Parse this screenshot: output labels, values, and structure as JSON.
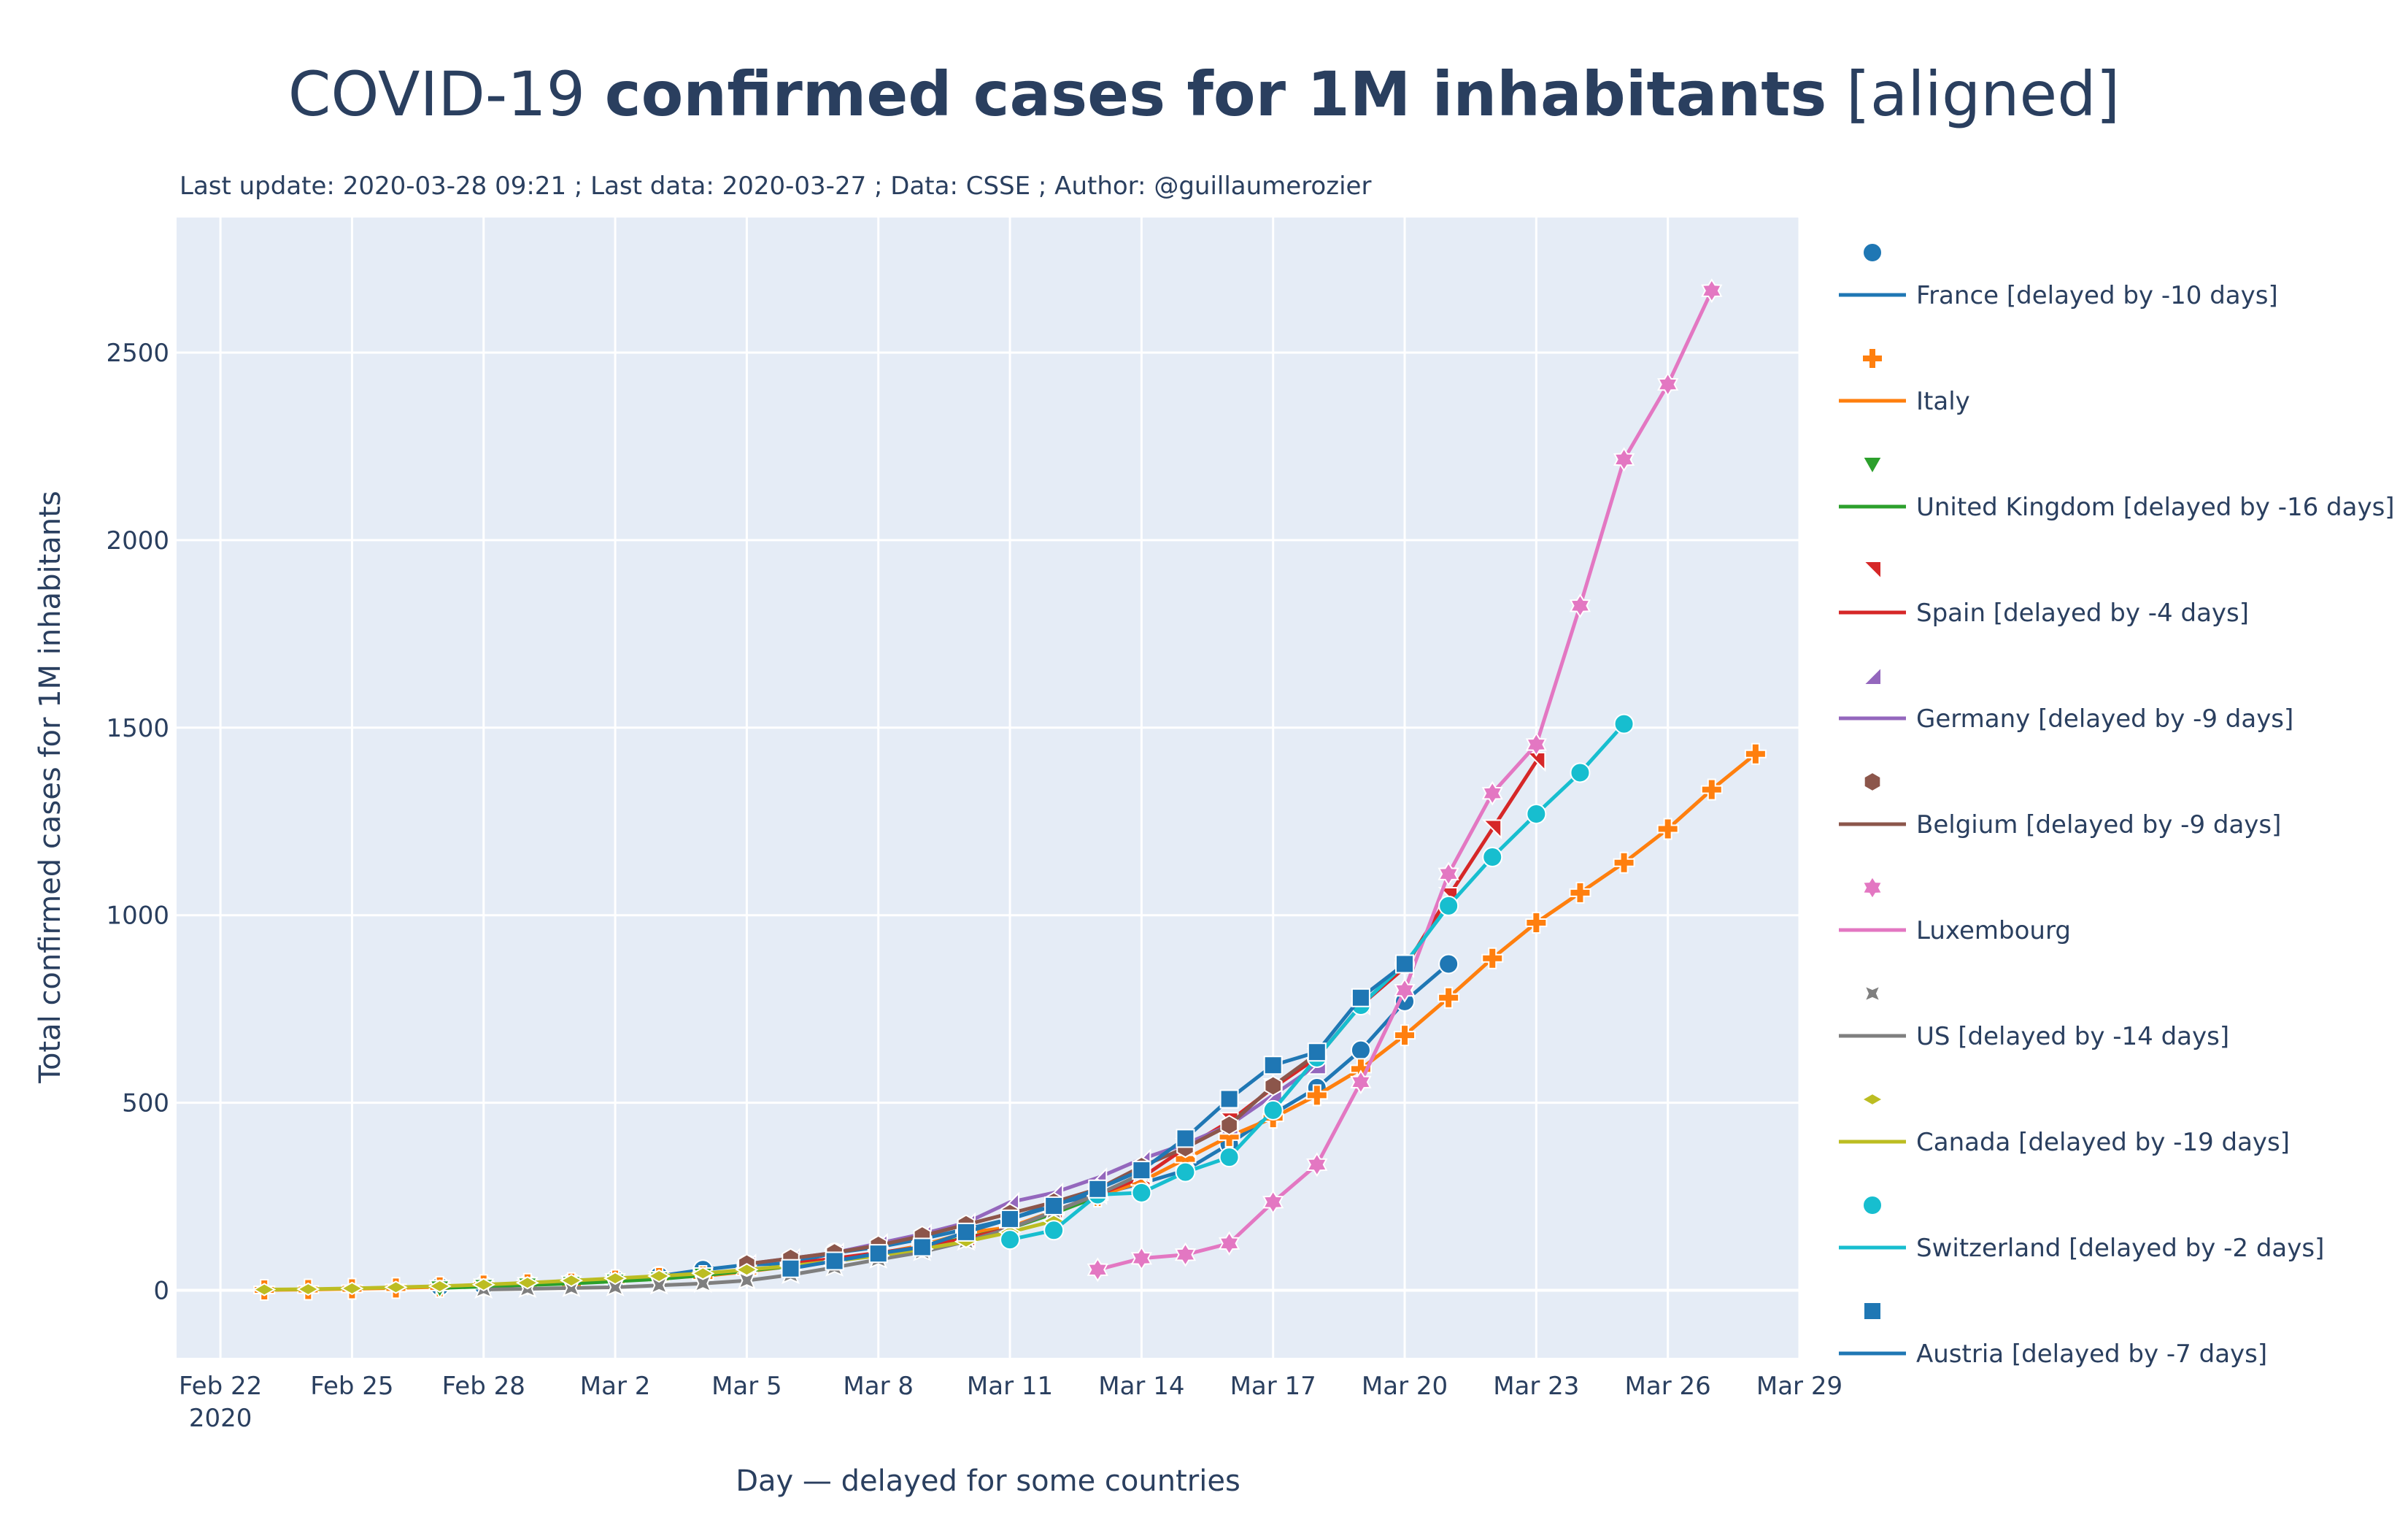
{
  "chart_data": {
    "type": "line",
    "title_prefix": "COVID-19 ",
    "title_bold": "confirmed cases for 1M inhabitants",
    "title_suffix": " [aligned]",
    "subtitle": "Last update: 2020-03-28 09:21 ; Last data: 2020-03-27 ; Data: CSSE ; Author: @guillaumerozier",
    "xlabel": "Day — delayed for some countries",
    "ylabel": "Total confirmed cases  for 1M inhabitants",
    "x_ticks": [
      {
        "date": "2020-02-22",
        "label": "Feb 22",
        "label2": "2020"
      },
      {
        "date": "2020-02-25",
        "label": "Feb 25"
      },
      {
        "date": "2020-02-28",
        "label": "Feb 28"
      },
      {
        "date": "2020-03-02",
        "label": "Mar 2"
      },
      {
        "date": "2020-03-05",
        "label": "Mar 5"
      },
      {
        "date": "2020-03-08",
        "label": "Mar 8"
      },
      {
        "date": "2020-03-11",
        "label": "Mar 11"
      },
      {
        "date": "2020-03-14",
        "label": "Mar 14"
      },
      {
        "date": "2020-03-17",
        "label": "Mar 17"
      },
      {
        "date": "2020-03-20",
        "label": "Mar 20"
      },
      {
        "date": "2020-03-23",
        "label": "Mar 23"
      },
      {
        "date": "2020-03-26",
        "label": "Mar 26"
      },
      {
        "date": "2020-03-29",
        "label": "Mar 29"
      }
    ],
    "xlim": [
      "2020-02-21",
      "2020-03-29"
    ],
    "y_ticks": [
      0,
      500,
      1000,
      1500,
      2000,
      2500
    ],
    "ylim": [
      -180,
      2860
    ],
    "grid": true,
    "legend_placement": "right",
    "series": [
      {
        "name": "France [delayed by -10 days]",
        "color": "#1f77b4",
        "marker": "circle",
        "start": "2020-02-27",
        "values": [
          10,
          12,
          15,
          20,
          28,
          38,
          55,
          68,
          72,
          100,
          115,
          137,
          163,
          190,
          230,
          255,
          285,
          320,
          390,
          470,
          540,
          640,
          770,
          870
        ]
      },
      {
        "name": "Italy",
        "color": "#ff7f0e",
        "marker": "cross",
        "start": "2020-02-23",
        "values": [
          1,
          2,
          4,
          6,
          9,
          14,
          17,
          19,
          27,
          34,
          38,
          50,
          64,
          76,
          98,
          120,
          153,
          168,
          211,
          250,
          290,
          350,
          410,
          460,
          520,
          590,
          680,
          780,
          885,
          980,
          1060,
          1140,
          1230,
          1335,
          1430
        ]
      },
      {
        "name": "United Kingdom [delayed by -16 days]",
        "color": "#2ca02c",
        "marker": "triangle-down",
        "start": "2020-02-27",
        "values": [
          6,
          10,
          14,
          18,
          24,
          30,
          40,
          52,
          64,
          80,
          95,
          115,
          140,
          165,
          205,
          250
        ]
      },
      {
        "name": "Spain [delayed by -4 days]",
        "color": "#d62728",
        "marker": "triangle-ne",
        "start": "2020-03-06",
        "values": [
          70,
          85,
          100,
          115,
          138,
          165,
          210,
          255,
          300,
          380,
          450,
          540,
          620,
          760,
          860,
          1050,
          1230,
          1410
        ]
      },
      {
        "name": "Germany [delayed by -9 days]",
        "color": "#9467bd",
        "marker": "triangle-se",
        "start": "2020-03-05",
        "values": [
          70,
          85,
          100,
          125,
          150,
          180,
          235,
          260,
          300,
          350,
          390,
          440,
          520,
          600
        ]
      },
      {
        "name": "Belgium [delayed by -9 days]",
        "color": "#8c564b",
        "marker": "hexagon",
        "start": "2020-03-05",
        "values": [
          70,
          85,
          100,
          120,
          145,
          175,
          205,
          235,
          270,
          330,
          380,
          440,
          545,
          630
        ]
      },
      {
        "name": "Luxembourg",
        "color": "#e377c2",
        "marker": "hexagram",
        "start": "2020-03-13",
        "values": [
          55,
          85,
          95,
          125,
          235,
          335,
          555,
          800,
          1110,
          1325,
          1455,
          1825,
          2215,
          2415,
          2665
        ]
      },
      {
        "name": "US [delayed by -14 days]",
        "color": "#7f7f7f",
        "marker": "x-thin",
        "start": "2020-02-28",
        "values": [
          2,
          4,
          6,
          8,
          13,
          18,
          26,
          41,
          61,
          82,
          102,
          130,
          165,
          210,
          255,
          310
        ]
      },
      {
        "name": "Canada [delayed by -19 days]",
        "color": "#bcbd22",
        "marker": "diamond-wide",
        "start": "2020-02-23",
        "values": [
          2,
          3,
          5,
          8,
          11,
          15,
          20,
          26,
          32,
          38,
          45,
          55,
          65,
          78,
          92,
          110,
          130,
          155,
          185
        ]
      },
      {
        "name": "Switzerland [delayed by -2 days]",
        "color": "#17becf",
        "marker": "circle",
        "start": "2020-03-11",
        "values": [
          135,
          160,
          255,
          260,
          315,
          355,
          480,
          620,
          760,
          870,
          1025,
          1155,
          1270,
          1380,
          1510
        ]
      },
      {
        "name": "Austria [delayed by -7 days]",
        "color": "#1f77b4",
        "marker": "square",
        "start": "2020-03-06",
        "values": [
          58,
          78,
          98,
          115,
          155,
          190,
          225,
          270,
          320,
          405,
          510,
          600,
          635,
          780,
          870
        ]
      }
    ]
  }
}
